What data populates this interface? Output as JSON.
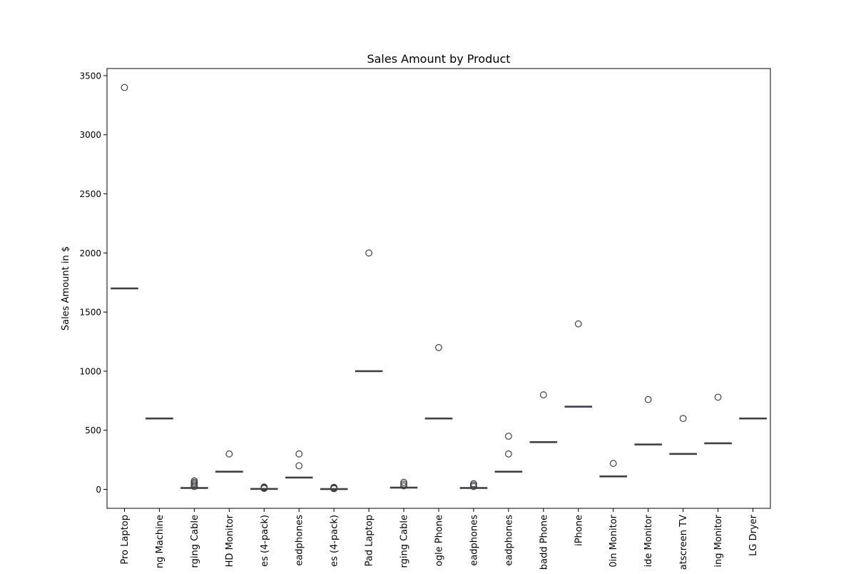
{
  "chart_data": {
    "type": "box",
    "title": "Sales Amount by Product",
    "xlabel": "",
    "ylabel": "Sales Amount in $",
    "ylim": [
      -160,
      3560
    ],
    "yticks": [
      0,
      500,
      1000,
      1500,
      2000,
      2500,
      3000,
      3500
    ],
    "grid": false,
    "box_color": "#3b4a7a",
    "flier_color": "#3f3f3f",
    "categories": [
      {
        "label": "Pro Laptop",
        "median": 1700,
        "outliers": [
          3400
        ]
      },
      {
        "label": "ng Machine",
        "median": 600,
        "outliers": []
      },
      {
        "label": "rging Cable",
        "median": 12,
        "outliers": [
          24,
          36,
          48,
          60,
          72
        ]
      },
      {
        "label": "HD Monitor",
        "median": 150,
        "outliers": [
          300
        ]
      },
      {
        "label": "es (4-pack)",
        "median": 4,
        "outliers": [
          8,
          12,
          16,
          20
        ]
      },
      {
        "label": "eadphones",
        "median": 100,
        "outliers": [
          200,
          300
        ]
      },
      {
        "label": "es (4-pack)",
        "median": 3,
        "outliers": [
          6,
          9,
          12,
          15,
          18
        ]
      },
      {
        "label": "Pad Laptop",
        "median": 1000,
        "outliers": [
          2000
        ]
      },
      {
        "label": "rging Cable",
        "median": 15,
        "outliers": [
          30,
          45,
          60
        ]
      },
      {
        "label": "ogle Phone",
        "median": 600,
        "outliers": [
          1200
        ]
      },
      {
        "label": "eadphones",
        "median": 12,
        "outliers": [
          24,
          36,
          48
        ]
      },
      {
        "label": "eadphones",
        "median": 150,
        "outliers": [
          300,
          450
        ]
      },
      {
        "label": "badd Phone",
        "median": 400,
        "outliers": [
          800
        ]
      },
      {
        "label": "iPhone",
        "median": 700,
        "outliers": [
          1400
        ]
      },
      {
        "label": "0in Monitor",
        "median": 110,
        "outliers": [
          220
        ]
      },
      {
        "label": "ide Monitor",
        "median": 380,
        "outliers": [
          760
        ]
      },
      {
        "label": "atscreen TV",
        "median": 300,
        "outliers": [
          600
        ]
      },
      {
        "label": "ing Monitor",
        "median": 390,
        "outliers": [
          780
        ]
      },
      {
        "label": "LG Dryer",
        "median": 600,
        "outliers": []
      }
    ]
  }
}
